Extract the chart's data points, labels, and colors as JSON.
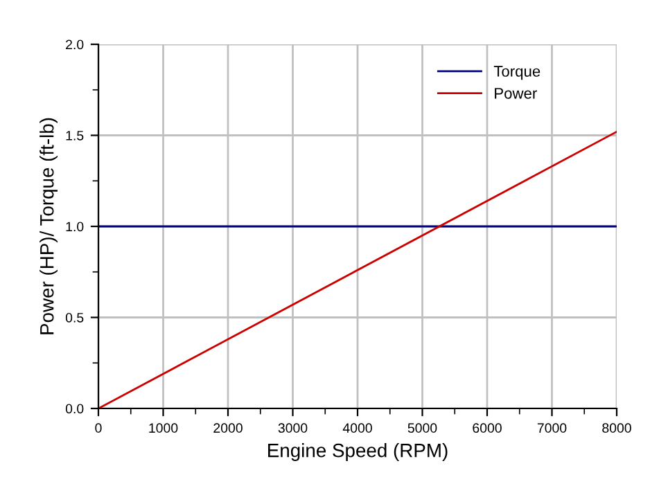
{
  "chart_data": {
    "type": "line",
    "xlabel": "Engine Speed (RPM)",
    "ylabel": "Power (HP)/ Torque (ft-lb)",
    "x": [
      0,
      8000
    ],
    "series": [
      {
        "name": "Torque",
        "color": "#000080",
        "values": [
          1.0,
          1.0
        ]
      },
      {
        "name": "Power",
        "color": "#cc0000",
        "values": [
          0,
          1.52
        ]
      }
    ],
    "xlim": [
      0,
      8000
    ],
    "ylim": [
      0,
      2.0
    ],
    "xticks": [
      0,
      {
        "value": 500,
        "label": null
      },
      1000,
      {
        "value": 1500,
        "label": null
      },
      2000,
      {
        "value": 2500,
        "label": null
      },
      3000,
      {
        "value": 3500,
        "label": null
      },
      4000,
      {
        "value": 4500,
        "label": null
      },
      5000,
      {
        "value": 5500,
        "label": null
      },
      6000,
      {
        "value": 6500,
        "label": null
      },
      7000,
      {
        "value": 7500,
        "label": null
      },
      8000
    ],
    "yticks": [
      {
        "value": 0,
        "label": "0.0"
      },
      {
        "value": 0.25,
        "label": null
      },
      {
        "value": 0.5,
        "label": "0.5"
      },
      {
        "value": 0.75,
        "label": null
      },
      {
        "value": 1.0,
        "label": "1.0"
      },
      {
        "value": 1.25,
        "label": null
      },
      {
        "value": 1.5,
        "label": "1.5"
      },
      {
        "value": 1.75,
        "label": null
      },
      {
        "value": 2.0,
        "label": "2.0"
      }
    ],
    "grid": true,
    "legend": "top right",
    "marker": "none",
    "line_style": "solid"
  }
}
